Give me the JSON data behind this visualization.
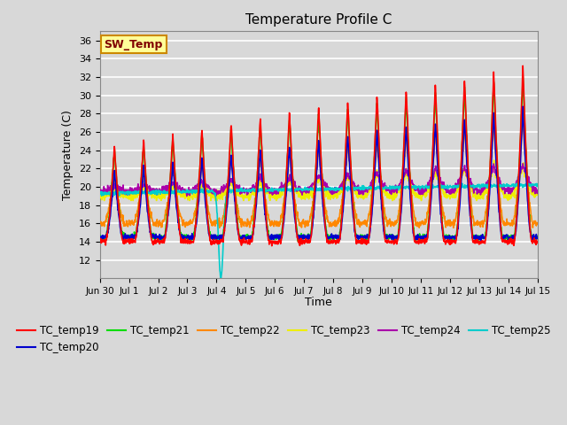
{
  "title": "Temperature Profile C",
  "xlabel": "Time",
  "ylabel": "Temperature (C)",
  "ylim": [
    10,
    37
  ],
  "yticks": [
    12,
    14,
    16,
    18,
    20,
    22,
    24,
    26,
    28,
    30,
    32,
    34,
    36
  ],
  "xtick_labels": [
    "Jun 30",
    "Jul 1",
    "Jul 2",
    "Jul 3",
    "Jul 4",
    "Jul 5",
    "Jul 6",
    "Jul 7",
    "Jul 8",
    "Jul 9",
    "Jul 10",
    "Jul 11",
    "Jul 12",
    "Jul 13",
    "Jul 14",
    "Jul 15"
  ],
  "series_colors": {
    "TC_temp19": "#ff0000",
    "TC_temp20": "#0000cd",
    "TC_temp21": "#00dd00",
    "TC_temp22": "#ff8800",
    "TC_temp23": "#eeee00",
    "TC_temp24": "#aa00aa",
    "TC_temp25": "#00cccc"
  },
  "sw_temp_box_color": "#ffff99",
  "sw_temp_text_color": "#800000",
  "sw_temp_border_color": "#cc8800",
  "background_color": "#d8d8d8",
  "plot_bg_color": "#d8d8d8",
  "grid_color": "#ffffff",
  "days": 15.0
}
